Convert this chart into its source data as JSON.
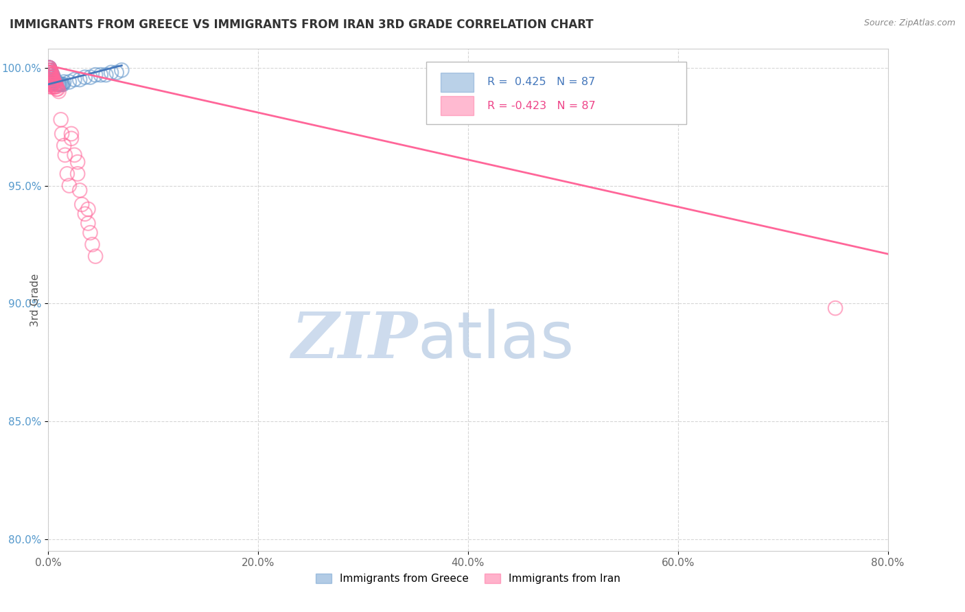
{
  "title": "IMMIGRANTS FROM GREECE VS IMMIGRANTS FROM IRAN 3RD GRADE CORRELATION CHART",
  "source_text": "Source: ZipAtlas.com",
  "ylabel": "3rd Grade",
  "xlim": [
    0.0,
    0.8
  ],
  "ylim": [
    0.795,
    1.008
  ],
  "xtick_labels": [
    "0.0%",
    "20.0%",
    "40.0%",
    "60.0%",
    "80.0%"
  ],
  "xtick_values": [
    0.0,
    0.2,
    0.4,
    0.6,
    0.8
  ],
  "ytick_labels": [
    "80.0%",
    "85.0%",
    "90.0%",
    "95.0%",
    "100.0%"
  ],
  "ytick_values": [
    0.8,
    0.85,
    0.9,
    0.95,
    1.0
  ],
  "greece_color": "#6699CC",
  "iran_color": "#FF6699",
  "greece_R": 0.425,
  "iran_R": -0.423,
  "N": 87,
  "legend_greece": "Immigrants from Greece",
  "legend_iran": "Immigrants from Iran",
  "watermark_zip": "ZIP",
  "watermark_atlas": "atlas",
  "background_color": "#FFFFFF",
  "title_fontsize": 12,
  "watermark_color_zip": "#C8D8EC",
  "watermark_color_atlas": "#B8CCE4",
  "greece_line_x": [
    0.0,
    0.07
  ],
  "greece_line_y": [
    0.993,
    1.001
  ],
  "iran_line_x": [
    0.0,
    0.8
  ],
  "iran_line_y": [
    1.001,
    0.921
  ],
  "greece_points_x": [
    0.001,
    0.001,
    0.001,
    0.001,
    0.001,
    0.001,
    0.001,
    0.001,
    0.001,
    0.001,
    0.001,
    0.001,
    0.002,
    0.002,
    0.002,
    0.002,
    0.002,
    0.002,
    0.002,
    0.002,
    0.003,
    0.003,
    0.003,
    0.003,
    0.003,
    0.003,
    0.004,
    0.004,
    0.004,
    0.004,
    0.005,
    0.005,
    0.005,
    0.006,
    0.006,
    0.007,
    0.007,
    0.008,
    0.009,
    0.01,
    0.01,
    0.011,
    0.012,
    0.013,
    0.014,
    0.015,
    0.02,
    0.025,
    0.03,
    0.035,
    0.04,
    0.045,
    0.05,
    0.055,
    0.06,
    0.065,
    0.07
  ],
  "greece_points_y": [
    1.0,
    1.0,
    1.0,
    0.999,
    0.999,
    0.998,
    0.998,
    0.997,
    0.997,
    0.996,
    0.996,
    0.995,
    0.999,
    0.999,
    0.998,
    0.997,
    0.996,
    0.995,
    0.994,
    0.993,
    0.998,
    0.997,
    0.996,
    0.995,
    0.994,
    0.993,
    0.997,
    0.996,
    0.995,
    0.994,
    0.996,
    0.995,
    0.994,
    0.995,
    0.994,
    0.994,
    0.993,
    0.993,
    0.993,
    0.993,
    0.993,
    0.993,
    0.993,
    0.993,
    0.993,
    0.994,
    0.994,
    0.995,
    0.995,
    0.996,
    0.996,
    0.997,
    0.997,
    0.997,
    0.998,
    0.998,
    0.999
  ],
  "iran_points_x": [
    0.001,
    0.001,
    0.001,
    0.001,
    0.001,
    0.001,
    0.001,
    0.001,
    0.001,
    0.002,
    0.002,
    0.002,
    0.002,
    0.002,
    0.002,
    0.002,
    0.002,
    0.003,
    0.003,
    0.003,
    0.003,
    0.003,
    0.003,
    0.003,
    0.004,
    0.004,
    0.004,
    0.004,
    0.004,
    0.005,
    0.005,
    0.005,
    0.005,
    0.006,
    0.006,
    0.006,
    0.007,
    0.007,
    0.008,
    0.008,
    0.009,
    0.01,
    0.012,
    0.013,
    0.015,
    0.016,
    0.018,
    0.02,
    0.022,
    0.025,
    0.028,
    0.03,
    0.032,
    0.035,
    0.038,
    0.04,
    0.042,
    0.045,
    0.038,
    0.028,
    0.022,
    0.75
  ],
  "iran_points_y": [
    1.0,
    1.0,
    0.999,
    0.999,
    0.998,
    0.998,
    0.997,
    0.996,
    0.995,
    0.999,
    0.998,
    0.997,
    0.996,
    0.995,
    0.994,
    0.993,
    0.992,
    0.998,
    0.997,
    0.996,
    0.995,
    0.994,
    0.993,
    0.992,
    0.997,
    0.996,
    0.995,
    0.994,
    0.993,
    0.995,
    0.994,
    0.993,
    0.992,
    0.994,
    0.993,
    0.992,
    0.993,
    0.992,
    0.992,
    0.991,
    0.991,
    0.99,
    0.978,
    0.972,
    0.967,
    0.963,
    0.955,
    0.95,
    0.972,
    0.963,
    0.955,
    0.948,
    0.942,
    0.938,
    0.934,
    0.93,
    0.925,
    0.92,
    0.94,
    0.96,
    0.97,
    0.898
  ]
}
